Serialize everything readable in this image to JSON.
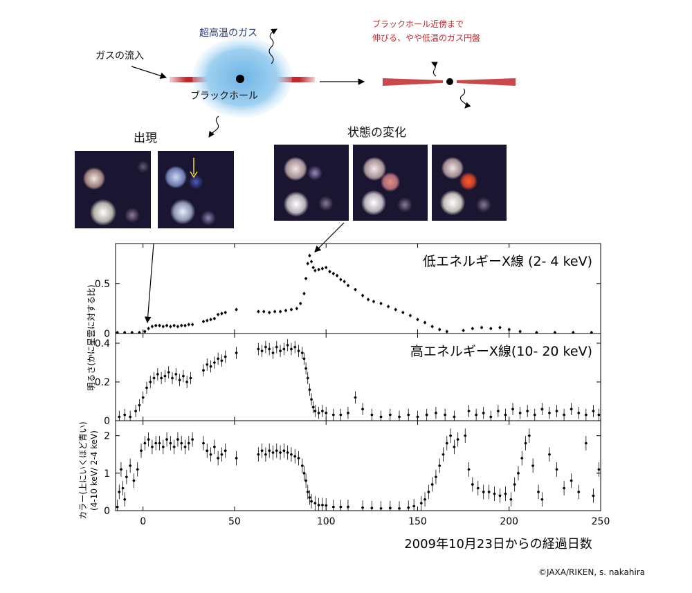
{
  "diagram": {
    "inflow_label": "ガスの流入",
    "hot_gas_label": "超高温のガス",
    "bh_label": "ブラックホール",
    "disk_label_line1": "ブラックホール近傍まで",
    "disk_label_line2": "伸びる、やや低温のガス円盤",
    "appearance_label": "出現",
    "state_change_label": "状態の変化",
    "colors": {
      "disk_red": "#c0282d",
      "gas_blue": "#8ec6ec"
    }
  },
  "chart_data": {
    "type": "scatter",
    "xlabel": "2009年10月23日からの経過日数",
    "xlim": [
      -15,
      250
    ],
    "xticks": [
      0,
      50,
      100,
      150,
      200,
      250
    ],
    "panels": [
      {
        "id": "soft",
        "title": "低エネルギーX線 (2- 4 keV)",
        "ylim": [
          0,
          0.9
        ],
        "yticks": [
          0,
          0.5
        ],
        "ytick_labels": [
          "0",
          "0.5"
        ],
        "points": [
          [
            -14,
            0.01
          ],
          [
            -10,
            0.01
          ],
          [
            -6,
            0.01
          ],
          [
            -2,
            0.01
          ],
          [
            1,
            0.02
          ],
          [
            3,
            0.05
          ],
          [
            5,
            0.07
          ],
          [
            7,
            0.08
          ],
          [
            9,
            0.08
          ],
          [
            11,
            0.07
          ],
          [
            13,
            0.08
          ],
          [
            15,
            0.07
          ],
          [
            17,
            0.08
          ],
          [
            19,
            0.07
          ],
          [
            21,
            0.08
          ],
          [
            23,
            0.08
          ],
          [
            25,
            0.09
          ],
          [
            27,
            0.09
          ],
          [
            33,
            0.12
          ],
          [
            35,
            0.13
          ],
          [
            37,
            0.14
          ],
          [
            39,
            0.15
          ],
          [
            41,
            0.19
          ],
          [
            43,
            0.2
          ],
          [
            45,
            0.21
          ],
          [
            51,
            0.24
          ],
          [
            63,
            0.22
          ],
          [
            66,
            0.22
          ],
          [
            69,
            0.21
          ],
          [
            72,
            0.22
          ],
          [
            75,
            0.22
          ],
          [
            78,
            0.23
          ],
          [
            81,
            0.24
          ],
          [
            84,
            0.25
          ],
          [
            86,
            0.3
          ],
          [
            88,
            0.4
          ],
          [
            89,
            0.55
          ],
          [
            90,
            0.7
          ],
          [
            91,
            0.78
          ],
          [
            92,
            0.72
          ],
          [
            93,
            0.66
          ],
          [
            94,
            0.63
          ],
          [
            96,
            0.64
          ],
          [
            98,
            0.65
          ],
          [
            100,
            0.66
          ],
          [
            102,
            0.62
          ],
          [
            104,
            0.6
          ],
          [
            106,
            0.58
          ],
          [
            108,
            0.54
          ],
          [
            110,
            0.52
          ],
          [
            112,
            0.48
          ],
          [
            116,
            0.44
          ],
          [
            120,
            0.38
          ],
          [
            123,
            0.34
          ],
          [
            126,
            0.32
          ],
          [
            130,
            0.3
          ],
          [
            134,
            0.27
          ],
          [
            138,
            0.24
          ],
          [
            142,
            0.21
          ],
          [
            146,
            0.18
          ],
          [
            150,
            0.14
          ],
          [
            154,
            0.11
          ],
          [
            158,
            0.07
          ],
          [
            162,
            0.04
          ],
          [
            166,
            0.02
          ],
          [
            175,
            0.03
          ],
          [
            180,
            0.05
          ],
          [
            185,
            0.06
          ],
          [
            190,
            0.05
          ],
          [
            195,
            0.06
          ],
          [
            200,
            0.04
          ],
          [
            206,
            0.02
          ],
          [
            215,
            0.01
          ],
          [
            225,
            0.01
          ],
          [
            235,
            0.01
          ],
          [
            245,
            0.01
          ]
        ]
      },
      {
        "id": "hard",
        "title": "高エネルギーX線(10- 20 keV)",
        "ylim": [
          0,
          0.45
        ],
        "yticks": [
          0,
          0.2,
          0.4
        ],
        "ytick_labels": [
          "0",
          "0.2",
          "0.4"
        ],
        "points": [
          [
            -13,
            0.02
          ],
          [
            -10,
            0.03
          ],
          [
            -7,
            0.02
          ],
          [
            -4,
            0.05
          ],
          [
            -2,
            0.08
          ],
          [
            0,
            0.12
          ],
          [
            2,
            0.17
          ],
          [
            4,
            0.2
          ],
          [
            6,
            0.22
          ],
          [
            8,
            0.24
          ],
          [
            10,
            0.22
          ],
          [
            12,
            0.23
          ],
          [
            14,
            0.25
          ],
          [
            16,
            0.22
          ],
          [
            18,
            0.24
          ],
          [
            20,
            0.21
          ],
          [
            22,
            0.23
          ],
          [
            24,
            0.2
          ],
          [
            26,
            0.22
          ],
          [
            33,
            0.26
          ],
          [
            35,
            0.29
          ],
          [
            37,
            0.28
          ],
          [
            39,
            0.3
          ],
          [
            41,
            0.32
          ],
          [
            43,
            0.31
          ],
          [
            45,
            0.33
          ],
          [
            51,
            0.35
          ],
          [
            63,
            0.37
          ],
          [
            65,
            0.36
          ],
          [
            67,
            0.38
          ],
          [
            69,
            0.37
          ],
          [
            71,
            0.35
          ],
          [
            73,
            0.38
          ],
          [
            75,
            0.36
          ],
          [
            77,
            0.37
          ],
          [
            79,
            0.39
          ],
          [
            81,
            0.37
          ],
          [
            83,
            0.38
          ],
          [
            85,
            0.36
          ],
          [
            87,
            0.35
          ],
          [
            88,
            0.32
          ],
          [
            89,
            0.27
          ],
          [
            90,
            0.22
          ],
          [
            91,
            0.16
          ],
          [
            92,
            0.11
          ],
          [
            93,
            0.07
          ],
          [
            94,
            0.05
          ],
          [
            96,
            0.04
          ],
          [
            98,
            0.05
          ],
          [
            100,
            0.04
          ],
          [
            104,
            0.03
          ],
          [
            108,
            0.03
          ],
          [
            112,
            0.04
          ],
          [
            116,
            0.12
          ],
          [
            120,
            0.06
          ],
          [
            125,
            0.03
          ],
          [
            130,
            0.02
          ],
          [
            135,
            0.03
          ],
          [
            140,
            0.02
          ],
          [
            145,
            0.03
          ],
          [
            150,
            0.02
          ],
          [
            155,
            0.03
          ],
          [
            160,
            0.04
          ],
          [
            165,
            0.03
          ],
          [
            170,
            0.02
          ],
          [
            178,
            0.05
          ],
          [
            182,
            0.03
          ],
          [
            186,
            0.04
          ],
          [
            190,
            0.02
          ],
          [
            194,
            0.05
          ],
          [
            198,
            0.03
          ],
          [
            202,
            0.06
          ],
          [
            206,
            0.04
          ],
          [
            210,
            0.05
          ],
          [
            214,
            0.03
          ],
          [
            218,
            0.06
          ],
          [
            222,
            0.04
          ],
          [
            226,
            0.05
          ],
          [
            230,
            0.03
          ],
          [
            234,
            0.06
          ],
          [
            238,
            0.04
          ],
          [
            242,
            0.03
          ],
          [
            246,
            0.05
          ],
          [
            249,
            0.03
          ]
        ]
      },
      {
        "id": "color",
        "ylim": [
          0,
          2.4
        ],
        "yticks": [
          0,
          1,
          2
        ],
        "ytick_labels": [
          "0",
          "1",
          "2"
        ],
        "points": [
          [
            -14,
            0.1
          ],
          [
            -13,
            0.5
          ],
          [
            -12,
            1.1
          ],
          [
            -11,
            0.6
          ],
          [
            -10,
            0.3
          ],
          [
            -9,
            0.9
          ],
          [
            -7,
            1.2
          ],
          [
            -5,
            0.8
          ],
          [
            -3,
            1.1
          ],
          [
            -1,
            1.6
          ],
          [
            1,
            1.8
          ],
          [
            3,
            1.9
          ],
          [
            5,
            1.7
          ],
          [
            7,
            1.8
          ],
          [
            9,
            1.8
          ],
          [
            11,
            1.7
          ],
          [
            13,
            1.9
          ],
          [
            15,
            1.8
          ],
          [
            17,
            1.7
          ],
          [
            19,
            1.9
          ],
          [
            21,
            1.8
          ],
          [
            23,
            1.7
          ],
          [
            25,
            1.8
          ],
          [
            27,
            1.9
          ],
          [
            33,
            1.8
          ],
          [
            35,
            1.6
          ],
          [
            37,
            1.5
          ],
          [
            39,
            1.7
          ],
          [
            41,
            1.4
          ],
          [
            43,
            1.5
          ],
          [
            45,
            1.6
          ],
          [
            51,
            1.4
          ],
          [
            63,
            1.5
          ],
          [
            65,
            1.6
          ],
          [
            67,
            1.5
          ],
          [
            69,
            1.6
          ],
          [
            71,
            1.55
          ],
          [
            73,
            1.6
          ],
          [
            75,
            1.55
          ],
          [
            77,
            1.6
          ],
          [
            79,
            1.55
          ],
          [
            81,
            1.5
          ],
          [
            83,
            1.45
          ],
          [
            85,
            1.4
          ],
          [
            87,
            1.2
          ],
          [
            88,
            1.0
          ],
          [
            89,
            0.8
          ],
          [
            90,
            0.5
          ],
          [
            91,
            0.35
          ],
          [
            92,
            0.25
          ],
          [
            94,
            0.2
          ],
          [
            96,
            0.15
          ],
          [
            98,
            0.15
          ],
          [
            100,
            0.14
          ],
          [
            104,
            0.1
          ],
          [
            108,
            0.1
          ],
          [
            112,
            0.1
          ],
          [
            120,
            0.08
          ],
          [
            125,
            0.07
          ],
          [
            130,
            0.06
          ],
          [
            135,
            0.07
          ],
          [
            140,
            0.06
          ],
          [
            145,
            0.08
          ],
          [
            148,
            0.12
          ],
          [
            152,
            0.2
          ],
          [
            154,
            0.3
          ],
          [
            156,
            0.5
          ],
          [
            158,
            0.7
          ],
          [
            160,
            0.9
          ],
          [
            162,
            1.2
          ],
          [
            164,
            1.5
          ],
          [
            166,
            1.8
          ],
          [
            168,
            2.0
          ],
          [
            170,
            1.7
          ],
          [
            172,
            1.9
          ],
          [
            176,
            2.0
          ],
          [
            178,
            1.1
          ],
          [
            180,
            0.7
          ],
          [
            183,
            0.6
          ],
          [
            186,
            0.5
          ],
          [
            189,
            0.5
          ],
          [
            192,
            0.45
          ],
          [
            195,
            0.4
          ],
          [
            198,
            0.45
          ],
          [
            201,
            0.3
          ],
          [
            203,
            0.7
          ],
          [
            205,
            1.0
          ],
          [
            207,
            1.4
          ],
          [
            209,
            1.8
          ],
          [
            211,
            2.0
          ],
          [
            213,
            1.2
          ],
          [
            216,
            0.5
          ],
          [
            218,
            0.3
          ],
          [
            222,
            1.5
          ],
          [
            226,
            1.1
          ],
          [
            230,
            0.6
          ],
          [
            234,
            0.8
          ],
          [
            238,
            0.5
          ],
          [
            242,
            1.8
          ],
          [
            246,
            0.4
          ],
          [
            249,
            1.1
          ]
        ]
      }
    ],
    "ylabel_upper": "明るさ(かに星雲に対する比)",
    "ylabel_lower_line1": "カラー(上にいくほど青い)",
    "ylabel_lower_line2": "(4-10 keV/ 2-4 keV)"
  },
  "credit": "©JAXA/RIKEN, s. nakahira"
}
